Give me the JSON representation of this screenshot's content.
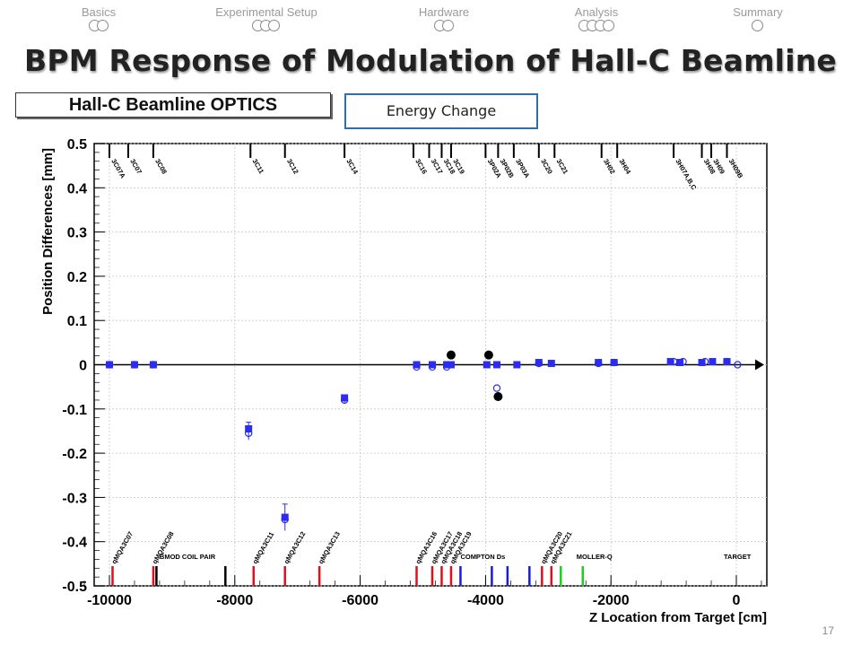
{
  "nav": {
    "sections": [
      {
        "label": "Basics",
        "dots": 2
      },
      {
        "label": "Experimental Setup",
        "dots": 3
      },
      {
        "label": "Hardware",
        "dots": 2
      },
      {
        "label": "Analysis",
        "dots": 4
      },
      {
        "label": "Summary",
        "dots": 1
      }
    ]
  },
  "slide": {
    "title": "BPM Response of Modulation of Hall-C Beamline",
    "number": "17"
  },
  "boxes": {
    "optics_label": "Hall-C Beamline OPTICS",
    "energy_label": "Energy Change"
  },
  "chart_data": {
    "type": "scatter",
    "xlabel": "Z Location from Target [cm]",
    "ylabel": "Position Differences [mm]",
    "xlim": [
      -10500,
      500
    ],
    "ylim": [
      -0.5,
      0.5
    ],
    "x_ticks": [
      -10000,
      -8000,
      -6000,
      -4000,
      -2000,
      0
    ],
    "y_ticks": [
      -0.5,
      -0.4,
      -0.3,
      -0.2,
      -0.1,
      0,
      0.1,
      0.2,
      0.3,
      0.4,
      0.5
    ],
    "y_tick_labels": [
      "-0.5",
      "-0.4",
      "-0.3",
      "-0.2",
      "-0.1",
      "0",
      "0.1",
      "0.2",
      "0.3",
      "0.4",
      "0.5"
    ],
    "bpm_markers": [
      {
        "name": "3C07A",
        "x": -10000
      },
      {
        "name": "3C07",
        "x": -9700
      },
      {
        "name": "3C08",
        "x": -9300
      },
      {
        "name": "3C11",
        "x": -7750
      },
      {
        "name": "3C12",
        "x": -7200
      },
      {
        "name": "3C14",
        "x": -6250
      },
      {
        "name": "3C16",
        "x": -5150
      },
      {
        "name": "3C17",
        "x": -4900
      },
      {
        "name": "3C18",
        "x": -4700
      },
      {
        "name": "3C19",
        "x": -4550
      },
      {
        "name": "3P02A",
        "x": -4000
      },
      {
        "name": "3P02B",
        "x": -3800
      },
      {
        "name": "3P03A",
        "x": -3550
      },
      {
        "name": "3C20",
        "x": -3150
      },
      {
        "name": "3C21",
        "x": -2900
      },
      {
        "name": "3H02",
        "x": -2150
      },
      {
        "name": "3H04",
        "x": -1900
      },
      {
        "name": "3H07A,B,C",
        "x": -1000
      },
      {
        "name": "3H08",
        "x": -550
      },
      {
        "name": "3H09",
        "x": -400
      },
      {
        "name": "3H09B",
        "x": -150
      }
    ],
    "magnets": [
      {
        "name": "qMQA3C07",
        "x": -9950,
        "color": "#e0101a"
      },
      {
        "name": "qMQA3C08",
        "x": -9300,
        "color": "#e0101a"
      },
      {
        "name": "qMQA3C11",
        "x": -7700,
        "color": "#e0101a"
      },
      {
        "name": "qMQA3C12",
        "x": -7200,
        "color": "#e0101a"
      },
      {
        "name": "qMQA3C13",
        "x": -6650,
        "color": "#e0101a"
      },
      {
        "name": "qMQA3C16",
        "x": -5100,
        "color": "#e0101a"
      },
      {
        "name": "qMQA3C17",
        "x": -4850,
        "color": "#e0101a"
      },
      {
        "name": "qMQA3C18",
        "x": -4700,
        "color": "#e0101a"
      },
      {
        "name": "qMQA3C19",
        "x": -4550,
        "color": "#e0101a"
      },
      {
        "name": "",
        "x": -4400,
        "color": "#1a1adf"
      },
      {
        "name": "",
        "x": -3900,
        "color": "#1a1adf"
      },
      {
        "name": "",
        "x": -3650,
        "color": "#1a1adf"
      },
      {
        "name": "",
        "x": -3300,
        "color": "#1a1adf"
      },
      {
        "name": "qMQA3C20",
        "x": -3100,
        "color": "#e0101a"
      },
      {
        "name": "qMQA3C21",
        "x": -2950,
        "color": "#e0101a"
      },
      {
        "name": "",
        "x": -2800,
        "color": "#19d01a"
      },
      {
        "name": "",
        "x": -2450,
        "color": "#19d01a"
      }
    ],
    "bmod_coils_x": [
      -9250,
      -8150
    ],
    "region_labels": [
      {
        "text": "BMOD COIL PAIR",
        "x": -9200
      },
      {
        "text": "COMPTON Ds",
        "x": -4400
      },
      {
        "text": "MOLLER-Q",
        "x": -2550
      },
      {
        "text": "TARGET",
        "x": -200
      }
    ],
    "series": [
      {
        "name": "",
        "color": "#2c2cf0",
        "points": [
          {
            "x": -10000,
            "y": 0.0
          },
          {
            "x": -9600,
            "y": 0.0
          },
          {
            "x": -9300,
            "y": 0.0
          },
          {
            "x": -7780,
            "y": -0.145
          },
          {
            "x": -7200,
            "y": -0.345
          },
          {
            "x": -6250,
            "y": -0.075
          },
          {
            "x": -5100,
            "y": 0.0
          },
          {
            "x": -4850,
            "y": 0.0
          },
          {
            "x": -4620,
            "y": 0.0
          },
          {
            "x": -4550,
            "y": 0.0
          },
          {
            "x": -3980,
            "y": 0.0
          },
          {
            "x": -3820,
            "y": 0.0
          },
          {
            "x": -3500,
            "y": 0.0
          },
          {
            "x": -3150,
            "y": 0.005
          },
          {
            "x": -2950,
            "y": 0.003
          },
          {
            "x": -2200,
            "y": 0.005
          },
          {
            "x": -1950,
            "y": 0.005
          },
          {
            "x": -1050,
            "y": 0.007
          },
          {
            "x": -900,
            "y": 0.005
          },
          {
            "x": -550,
            "y": 0.005
          },
          {
            "x": -380,
            "y": 0.007
          },
          {
            "x": -150,
            "y": 0.007
          }
        ]
      },
      {
        "name": "",
        "color": "#2c2cf0",
        "open": true,
        "points": [
          {
            "x": -10000,
            "y": 0.0
          },
          {
            "x": -9600,
            "y": 0.0
          },
          {
            "x": -9300,
            "y": 0.0
          },
          {
            "x": -7780,
            "y": -0.155
          },
          {
            "x": -7200,
            "y": -0.35
          },
          {
            "x": -6250,
            "y": -0.08
          },
          {
            "x": -5100,
            "y": -0.005
          },
          {
            "x": -4850,
            "y": -0.005
          },
          {
            "x": -4620,
            "y": -0.005
          },
          {
            "x": -3820,
            "y": -0.053
          },
          {
            "x": -3150,
            "y": 0.003
          },
          {
            "x": -2200,
            "y": 0.003
          },
          {
            "x": -1950,
            "y": 0.005
          },
          {
            "x": -1000,
            "y": 0.007
          },
          {
            "x": -850,
            "y": 0.007
          },
          {
            "x": -500,
            "y": 0.007
          },
          {
            "x": -150,
            "y": 0.007
          },
          {
            "x": 20,
            "y": 0.0
          }
        ]
      },
      {
        "name": "",
        "color": "#000000",
        "points": [
          {
            "x": -4550,
            "y": 0.022
          },
          {
            "x": -3950,
            "y": 0.022
          },
          {
            "x": -3800,
            "y": -0.072
          }
        ]
      }
    ],
    "grid": true
  }
}
